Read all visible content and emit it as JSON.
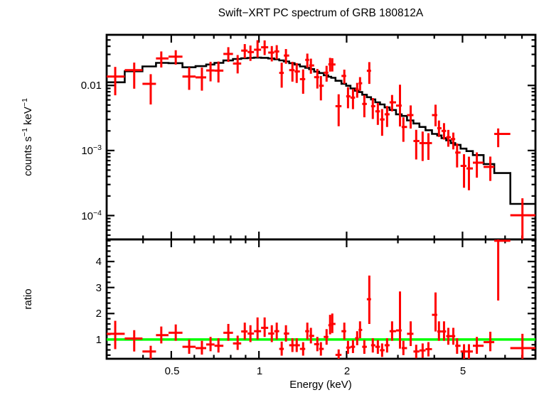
{
  "title": "Swift−XRT PC spectrum of GRB 180812A",
  "colors": {
    "data": "#ff0000",
    "model": "#000000",
    "ratio_reference_line": "#00ff00",
    "frame": "#000000",
    "background": "#ffffff"
  },
  "x_axis": {
    "label": "Energy (keV)",
    "scale": "log",
    "min": 0.3,
    "max": 8.9,
    "major_ticks": [
      0.5,
      1,
      2,
      5
    ],
    "major_tick_labels": [
      "0.5",
      "1",
      "2",
      "5"
    ],
    "minor_ticks": [
      0.4,
      0.6,
      0.7,
      0.8,
      0.9,
      3,
      4,
      6,
      7,
      8
    ]
  },
  "top_panel": {
    "y_label_parts": [
      {
        "t": "counts s"
      },
      {
        "t": "−1",
        "sup": true
      },
      {
        "t": " keV"
      },
      {
        "t": "−1",
        "sup": true
      }
    ],
    "scale": "log",
    "min": 4.3e-05,
    "max": 0.06,
    "major_ticks": [
      0.01,
      0.001,
      0.0001
    ],
    "major_tick_labels": [
      {
        "t": "0.01",
        "sup": ""
      },
      {
        "t": "10",
        "sup": "−3"
      },
      {
        "t": "10",
        "sup": "−4"
      }
    ]
  },
  "ratio_panel": {
    "y_label": "ratio",
    "scale": "linear",
    "min": 0.26,
    "max": 4.85,
    "major_ticks": [
      1,
      2,
      3,
      4
    ],
    "major_tick_labels": [
      "1",
      "2",
      "3",
      "4"
    ],
    "minor_tick_step": 0.2,
    "reference_line_value": 1
  },
  "chart_data": [
    {
      "type": "scatter",
      "name": "spectrum",
      "title": "Swift−XRT PC spectrum of GRB 180812A",
      "xlabel": "Energy (keV)",
      "ylabel": "counts s^-1 keV^-1",
      "x_range_keV": [
        0.3,
        8.9
      ],
      "y_range": [
        4.3e-05,
        0.06
      ],
      "energy_keV": [
        0.321,
        0.373,
        0.425,
        0.462,
        0.518,
        0.576,
        0.637,
        0.682,
        0.726,
        0.785,
        0.845,
        0.894,
        0.935,
        0.989,
        1.046,
        1.107,
        1.151,
        1.197,
        1.238,
        1.303,
        1.348,
        1.418,
        1.466,
        1.508,
        1.587,
        1.632,
        1.707,
        1.755,
        1.786,
        1.878,
        1.964,
        2.022,
        2.103,
        2.174,
        2.224,
        2.301,
        2.393,
        2.46,
        2.56,
        2.648,
        2.754,
        2.865,
        3.05,
        3.133,
        3.319,
        3.467,
        3.648,
        3.819,
        4.04,
        4.15,
        4.32,
        4.47,
        4.65,
        4.79,
        5.06,
        5.26,
        5.6,
        6.23,
        6.63,
        8.03
      ],
      "counts": [
        0.0137,
        0.0172,
        0.0106,
        0.026,
        0.0277,
        0.0137,
        0.0133,
        0.017,
        0.0169,
        0.0305,
        0.0217,
        0.0343,
        0.0326,
        0.0354,
        0.0386,
        0.032,
        0.0333,
        0.0156,
        0.0288,
        0.0172,
        0.0164,
        0.0125,
        0.0247,
        0.0203,
        0.0134,
        0.0099,
        0.0157,
        0.0211,
        0.021,
        0.0048,
        0.014,
        0.0068,
        0.0065,
        0.0087,
        0.0108,
        0.0052,
        0.0168,
        0.0048,
        0.004,
        0.003,
        0.0036,
        0.0055,
        0.0049,
        0.0023,
        0.0035,
        0.0014,
        0.0013,
        0.0013,
        0.0035,
        0.0022,
        0.002,
        0.0016,
        0.0015,
        0.00093,
        0.00058,
        0.00053,
        0.00065,
        0.00056,
        0.0018,
        0.000101
      ],
      "model_counts": [
        0.0112,
        0.0165,
        0.0196,
        0.0222,
        0.022,
        0.019,
        0.0198,
        0.021,
        0.0222,
        0.0242,
        0.0255,
        0.0262,
        0.0265,
        0.0268,
        0.0266,
        0.026,
        0.0252,
        0.0243,
        0.0234,
        0.022,
        0.021,
        0.0196,
        0.0187,
        0.0178,
        0.0163,
        0.0155,
        0.0143,
        0.0136,
        0.0131,
        0.0118,
        0.0106,
        0.0099,
        0.009,
        0.0083,
        0.0079,
        0.0072,
        0.0066,
        0.0061,
        0.0055,
        0.0051,
        0.0046,
        0.0042,
        0.0036,
        0.0034,
        0.0029,
        0.0026,
        0.0023,
        0.00205,
        0.0018,
        0.0017,
        0.00155,
        0.00143,
        0.0013,
        0.00122,
        0.00107,
        0.00098,
        0.00085,
        0.00062,
        0.00045,
        0.000151
      ]
    },
    {
      "type": "scatter",
      "name": "ratio",
      "xlabel": "Energy (keV)",
      "ylabel": "ratio",
      "reference_line": 1,
      "ratio": [
        1.22,
        1.04,
        0.54,
        1.17,
        1.26,
        0.72,
        0.67,
        0.81,
        0.76,
        1.26,
        0.85,
        1.31,
        1.23,
        1.32,
        1.45,
        1.23,
        1.32,
        0.64,
        1.23,
        0.78,
        0.78,
        0.64,
        1.32,
        1.14,
        0.82,
        0.64,
        1.1,
        1.55,
        1.6,
        0.41,
        1.32,
        0.69,
        0.72,
        1.05,
        1.37,
        0.72,
        2.55,
        0.78,
        0.72,
        0.59,
        0.78,
        1.32,
        1.35,
        0.67,
        1.22,
        0.54,
        0.58,
        0.63,
        1.95,
        1.31,
        1.31,
        1.13,
        1.13,
        0.76,
        0.54,
        0.54,
        0.76,
        0.9,
        4.8,
        0.67
      ],
      "ratio_err_lo": [
        0.63,
        0.54,
        0.26,
        0.85,
        0.95,
        0.45,
        0.42,
        0.55,
        0.5,
        0.95,
        0.6,
        1.0,
        0.9,
        1.0,
        1.1,
        0.9,
        1.0,
        0.38,
        0.92,
        0.52,
        0.52,
        0.38,
        1.0,
        0.85,
        0.55,
        0.38,
        0.8,
        1.2,
        1.25,
        0.2,
        1.0,
        0.45,
        0.48,
        0.78,
        1.05,
        0.45,
        1.6,
        0.5,
        0.45,
        0.33,
        0.5,
        0.95,
        0.65,
        0.4,
        0.75,
        0.28,
        0.3,
        0.35,
        1.31,
        0.95,
        0.95,
        0.8,
        0.8,
        0.45,
        0.25,
        0.25,
        0.45,
        0.55,
        2.5,
        0.18
      ],
      "ratio_err_hi": [
        1.72,
        1.36,
        0.76,
        1.5,
        1.58,
        1.0,
        0.95,
        1.1,
        1.05,
        1.6,
        1.15,
        1.65,
        1.55,
        1.85,
        1.85,
        1.55,
        1.65,
        0.92,
        1.55,
        1.05,
        1.05,
        0.9,
        1.65,
        1.45,
        1.1,
        0.9,
        1.4,
        1.95,
        2.0,
        0.62,
        1.65,
        0.95,
        0.98,
        1.32,
        1.7,
        0.98,
        3.46,
        1.05,
        0.98,
        0.85,
        1.05,
        1.7,
        2.85,
        0.95,
        1.7,
        0.8,
        0.85,
        0.9,
        2.81,
        1.7,
        1.7,
        1.45,
        1.45,
        1.05,
        0.82,
        0.82,
        1.1,
        1.3,
        4.85,
        1.22
      ]
    }
  ]
}
